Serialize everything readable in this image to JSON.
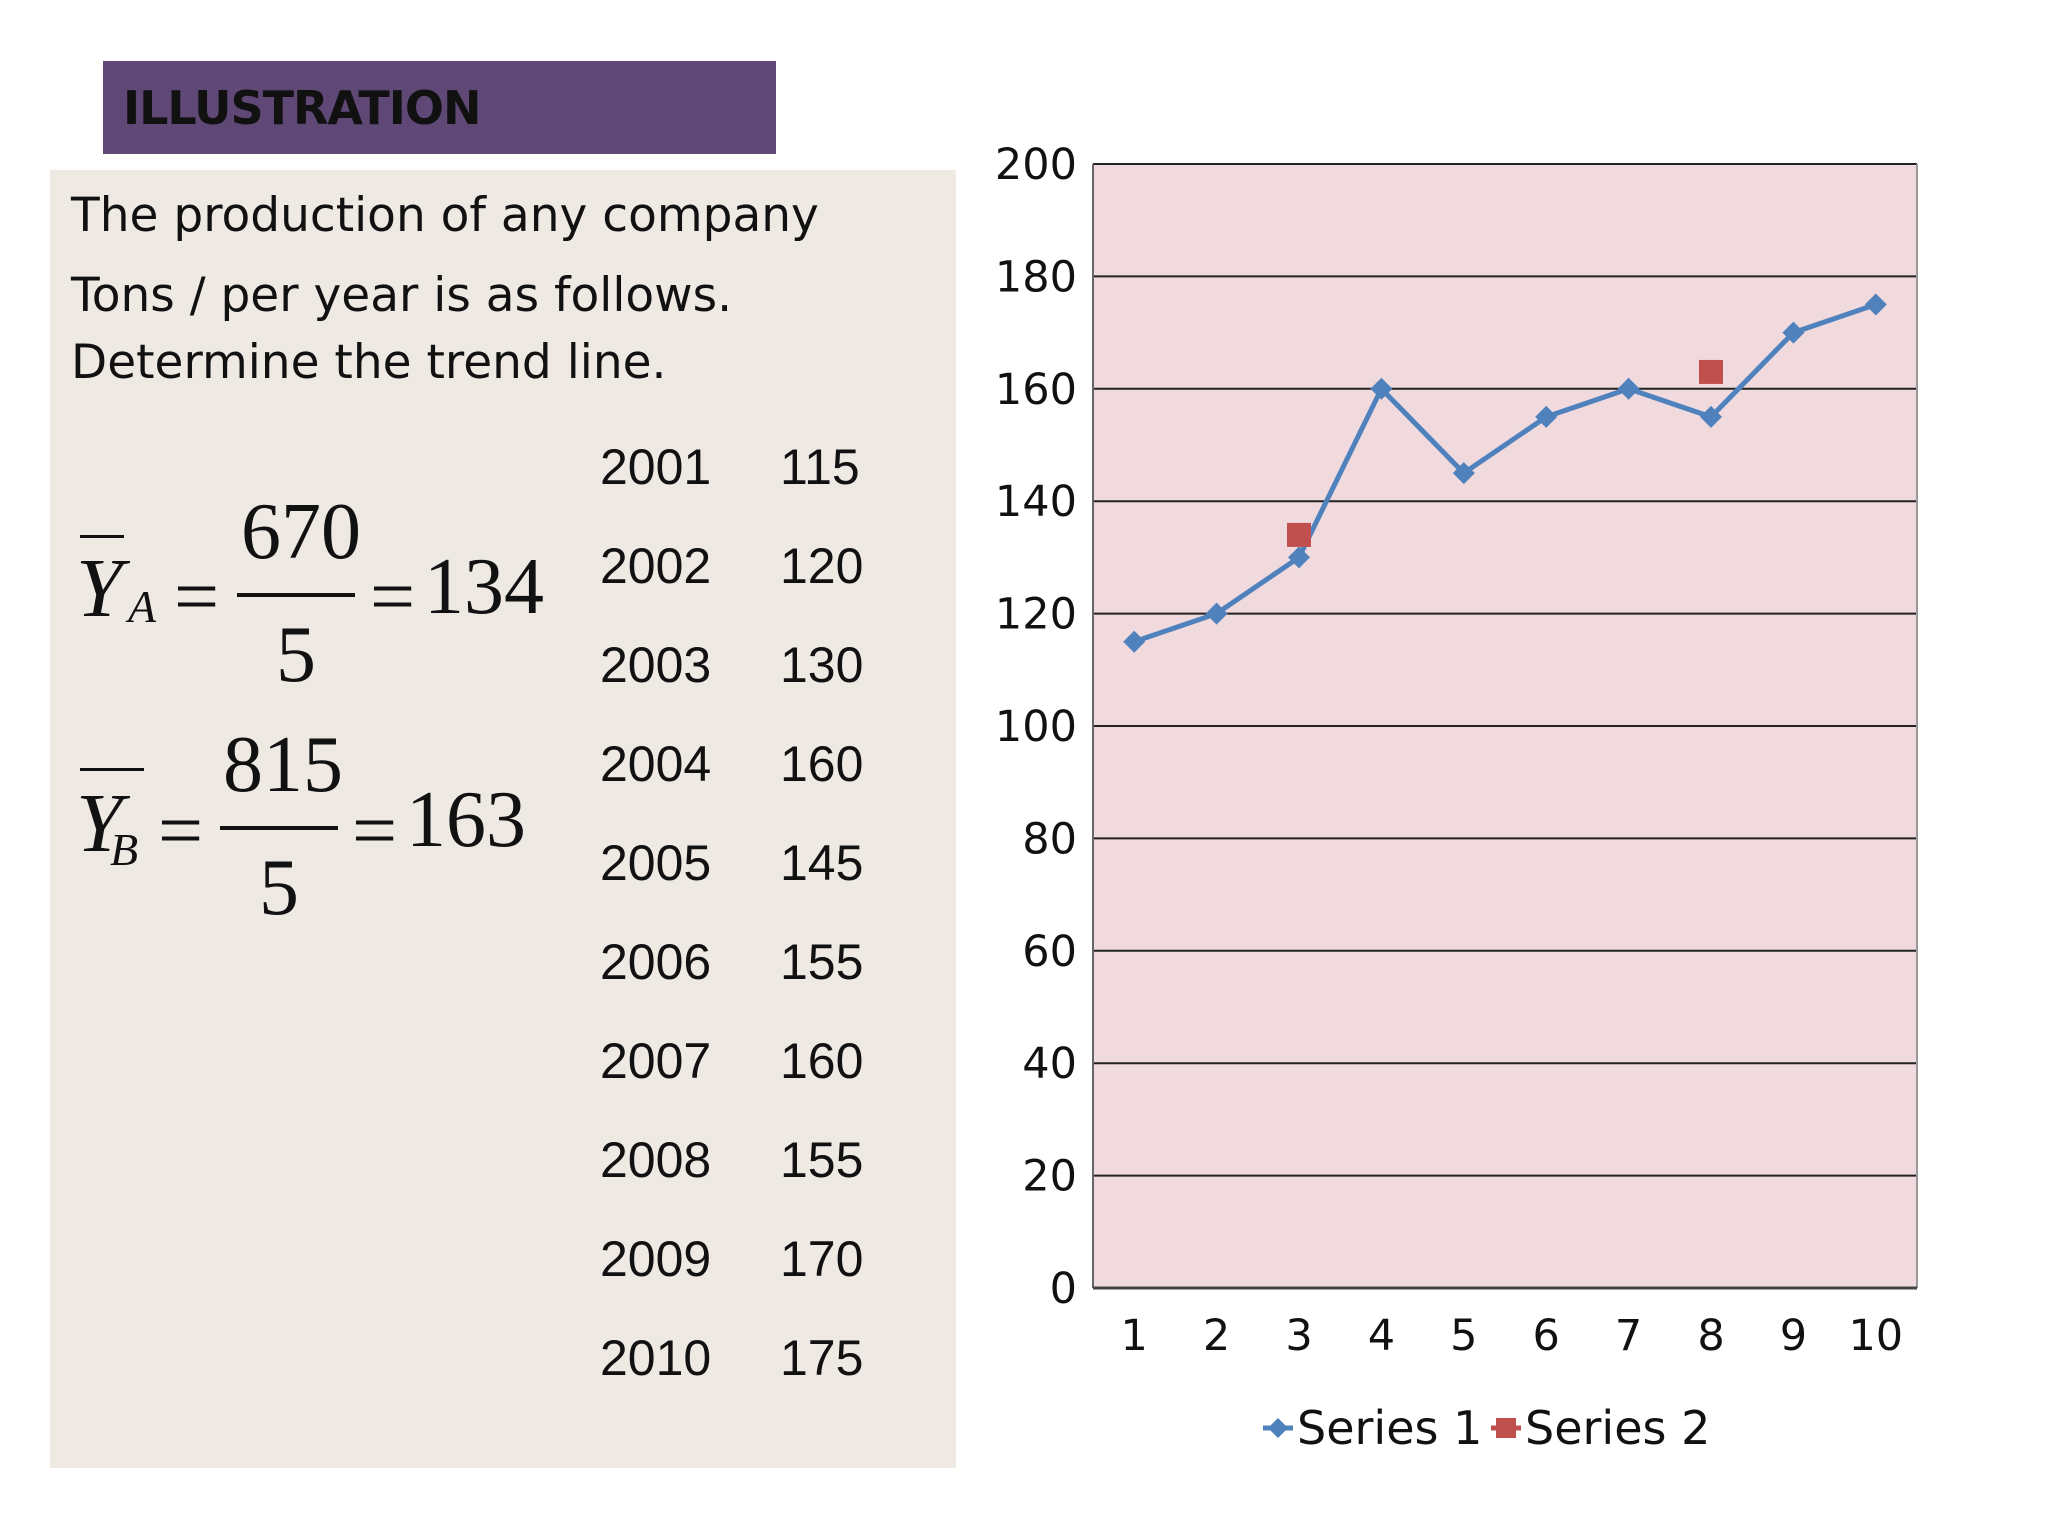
{
  "header": {
    "title": "ILLUSTRATION"
  },
  "problem": {
    "lines": [
      "The production of any company",
      "Tons / per year is as follows.",
      "Determine the trend line."
    ]
  },
  "equations": [
    {
      "symbol": "Y",
      "subscript": "A",
      "equals": "=",
      "numerator": "670",
      "denominator": "5",
      "result": "134"
    },
    {
      "symbol": "Y",
      "subscript": "B",
      "equals": "=",
      "numerator": "815",
      "denominator": "5",
      "result": "163"
    }
  ],
  "table": {
    "rows": [
      {
        "year": "2001",
        "value": "115"
      },
      {
        "year": "2002",
        "value": "120"
      },
      {
        "year": "2003",
        "value": "130"
      },
      {
        "year": "2004",
        "value": "160"
      },
      {
        "year": "2005",
        "value": "145"
      },
      {
        "year": "2006",
        "value": "155"
      },
      {
        "year": "2007",
        "value": "160"
      },
      {
        "year": "2008",
        "value": "155"
      },
      {
        "year": "2009",
        "value": "170"
      },
      {
        "year": "2010",
        "value": "175"
      }
    ]
  },
  "chart_data": {
    "type": "line",
    "x": [
      1,
      2,
      3,
      4,
      5,
      6,
      7,
      8,
      9,
      10
    ],
    "xticks": [
      "1",
      "2",
      "3",
      "4",
      "5",
      "6",
      "7",
      "8",
      "9",
      "10"
    ],
    "yticks": [
      "0",
      "20",
      "40",
      "60",
      "80",
      "100",
      "120",
      "140",
      "160",
      "180",
      "200"
    ],
    "ylim": [
      0,
      200
    ],
    "grid": true,
    "legend_position": "bottom",
    "plot_background": "#f0dade",
    "series": [
      {
        "name": "Series 1",
        "marker": "diamond",
        "color": "#4f81bd",
        "line": true,
        "x": [
          1,
          2,
          3,
          4,
          5,
          6,
          7,
          8,
          9,
          10
        ],
        "values": [
          115,
          120,
          130,
          160,
          145,
          155,
          160,
          155,
          170,
          175
        ]
      },
      {
        "name": "Series 2",
        "marker": "square",
        "color": "#c0504d",
        "line": false,
        "x": [
          3,
          8
        ],
        "values": [
          134,
          163
        ]
      }
    ]
  }
}
